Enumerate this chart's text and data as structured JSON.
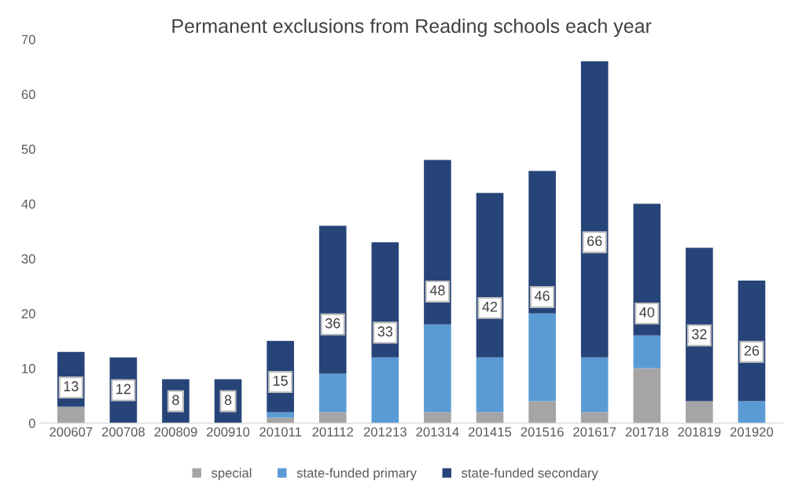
{
  "chart_data": {
    "type": "bar",
    "title": "Permanent exclusions from Reading schools each year",
    "categories": [
      "200607",
      "200708",
      "200809",
      "200910",
      "201011",
      "201112",
      "201213",
      "201314",
      "201415",
      "201516",
      "201617",
      "201718",
      "201819",
      "201920"
    ],
    "stacked": true,
    "series": [
      {
        "name": "special",
        "color": "#a5a5a5",
        "values": [
          3,
          0,
          0,
          0,
          1,
          2,
          0,
          2,
          2,
          4,
          2,
          10,
          4,
          0
        ]
      },
      {
        "name": "state-funded primary",
        "color": "#5b9bd5",
        "values": [
          0,
          0,
          0,
          0,
          1,
          7,
          12,
          16,
          10,
          16,
          10,
          6,
          0,
          4
        ]
      },
      {
        "name": "state-funded secondary",
        "color": "#264478",
        "values": [
          10,
          12,
          8,
          8,
          13,
          27,
          21,
          30,
          30,
          26,
          54,
          24,
          28,
          22
        ]
      }
    ],
    "totals": [
      "13",
      "12",
      "8",
      "8",
      "15",
      "36",
      "33",
      "48",
      "42",
      "46",
      "66",
      "40",
      "32",
      "26"
    ],
    "ylim": [
      0,
      70
    ],
    "yticks": [
      0,
      10,
      20,
      30,
      40,
      50,
      60,
      70
    ],
    "grid": false,
    "legend": "bottom"
  }
}
